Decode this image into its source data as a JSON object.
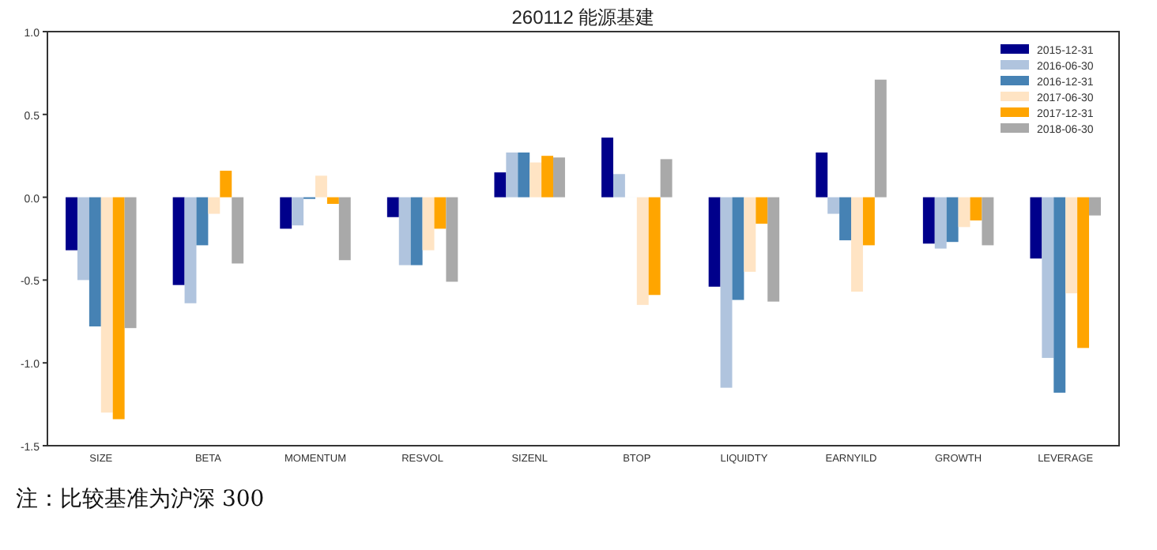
{
  "chart_data": {
    "type": "bar",
    "title": "260112 能源基建",
    "categories": [
      "SIZE",
      "BETA",
      "MOMENTUM",
      "RESVOL",
      "SIZENL",
      "BTOP",
      "LIQUIDTY",
      "EARNYILD",
      "GROWTH",
      "LEVERAGE"
    ],
    "series": [
      {
        "name": "2015-12-31",
        "color": "#00008b",
        "values": [
          -0.32,
          -0.53,
          -0.19,
          -0.12,
          0.15,
          0.36,
          -0.54,
          0.27,
          -0.28,
          -0.37
        ]
      },
      {
        "name": "2016-06-30",
        "color": "#b0c4de",
        "values": [
          -0.5,
          -0.64,
          -0.17,
          -0.41,
          0.27,
          0.14,
          -1.15,
          -0.1,
          -0.31,
          -0.97
        ]
      },
      {
        "name": "2016-12-31",
        "color": "#4682b4",
        "values": [
          -0.78,
          -0.29,
          -0.01,
          -0.41,
          0.27,
          0.0,
          -0.62,
          -0.26,
          -0.27,
          -1.18
        ]
      },
      {
        "name": "2017-06-30",
        "color": "#ffe4c4",
        "values": [
          -1.3,
          -0.1,
          0.13,
          -0.32,
          0.21,
          -0.65,
          -0.45,
          -0.57,
          -0.18,
          -0.58
        ]
      },
      {
        "name": "2017-12-31",
        "color": "#ffa500",
        "values": [
          -1.34,
          0.16,
          -0.04,
          -0.19,
          0.25,
          -0.59,
          -0.16,
          -0.29,
          -0.14,
          -0.91
        ]
      },
      {
        "name": "2018-06-30",
        "color": "#a9a9a9",
        "values": [
          -0.79,
          -0.4,
          -0.38,
          -0.51,
          0.24,
          0.23,
          -0.63,
          0.71,
          -0.29,
          -0.11
        ]
      }
    ],
    "ylim": [
      -1.5,
      1.0
    ],
    "yticks": [
      {
        "value": -1.5,
        "label": "-1.5"
      },
      {
        "value": -1,
        "label": "-1.0"
      },
      {
        "value": -0.5,
        "label": "-0.5"
      },
      {
        "value": 0,
        "label": "0.0"
      },
      {
        "value": 0.5,
        "label": "0.5"
      },
      {
        "value": 1,
        "label": "1.0"
      }
    ],
    "grid": false,
    "legend": "top right",
    "annotations": [
      "注：比较基准为沪深 300"
    ]
  }
}
